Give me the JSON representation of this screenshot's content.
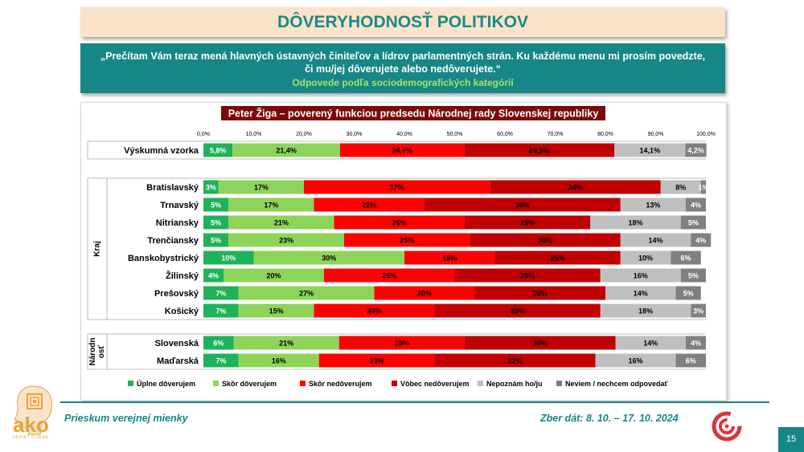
{
  "header": {
    "title": "DÔVERYHODNOSŤ POLITIKOV",
    "question": "„Prečítam Vám teraz mená hlavných ústavných činiteľov a lídrov parlamentných strán. Ku každému menu mi prosím povedzte, či mu/jej dôverujete alebo nedôverujete.“",
    "subtitle": "Odpovede podľa sociodemografických kategórií"
  },
  "chart_data": {
    "type": "bar",
    "orientation": "horizontal",
    "stacked": true,
    "title": "Peter Žiga – poverený funkciou predsedu Národnej rady Slovenskej republiky",
    "xlim": [
      0,
      100
    ],
    "tick_labels": [
      "0,0%",
      "10,0%",
      "20,0%",
      "30,0%",
      "40,0%",
      "50,0%",
      "60,0%",
      "70,0%",
      "80,0%",
      "90,0%",
      "100,0%"
    ],
    "legend_position": "bottom",
    "series": [
      {
        "name": "Úplne dôverujem",
        "color": "#1fb25a"
      },
      {
        "name": "Skôr dôverujem",
        "color": "#8fd45a"
      },
      {
        "name": "Skôr nedôverujem",
        "color": "#ff0000"
      },
      {
        "name": "Vôbec nedôverujem",
        "color": "#c00000"
      },
      {
        "name": "Nepoznám ho/ju",
        "color": "#bfbfbf"
      },
      {
        "name": "Neviem / nechcem odpovedať",
        "color": "#808080"
      }
    ],
    "groups": [
      {
        "label": "",
        "rows": [
          {
            "label": "Výskumná vzorka",
            "values": [
              5.8,
              21.4,
              24.7,
              29.9,
              14.1,
              4.2
            ],
            "labels": [
              "5,8%",
              "21,4%",
              "24,7%",
              "29,9%",
              "14,1%",
              "4,2%"
            ]
          }
        ]
      },
      {
        "label": "Kraj",
        "rows": [
          {
            "label": "Bratislavský",
            "values": [
              3,
              17,
              37,
              34,
              8,
              1
            ],
            "labels": [
              "3%",
              "17%",
              "37%",
              "34%",
              "8%",
              "1%"
            ]
          },
          {
            "label": "Trnavský",
            "values": [
              5,
              17,
              22,
              39,
              13,
              4
            ],
            "labels": [
              "5%",
              "17%",
              "22%",
              "39%",
              "13%",
              "4%"
            ]
          },
          {
            "label": "Nitriansky",
            "values": [
              5,
              21,
              26,
              25,
              18,
              5
            ],
            "labels": [
              "5%",
              "21%",
              "26%",
              "25%",
              "18%",
              "5%"
            ]
          },
          {
            "label": "Trenčiansky",
            "values": [
              5,
              23,
              25,
              30,
              14,
              4
            ],
            "labels": [
              "5%",
              "23%",
              "25%",
              "30%",
              "14%",
              "4%"
            ]
          },
          {
            "label": "Banskobystrický",
            "values": [
              10,
              30,
              18,
              25,
              10,
              6
            ],
            "labels": [
              "10%",
              "30%",
              "18%",
              "25%",
              "10%",
              "6%"
            ]
          },
          {
            "label": "Žilinský",
            "values": [
              4,
              20,
              26,
              29,
              16,
              5
            ],
            "labels": [
              "4%",
              "20%",
              "26%",
              "29%",
              "16%",
              "5%"
            ]
          },
          {
            "label": "Prešovský",
            "values": [
              7,
              27,
              20,
              26,
              14,
              5
            ],
            "labels": [
              "7%",
              "27%",
              "20%",
              "26%",
              "14%",
              "5%"
            ]
          },
          {
            "label": "Košický",
            "values": [
              7,
              15,
              24,
              33,
              18,
              3
            ],
            "labels": [
              "7%",
              "15%",
              "24%",
              "33%",
              "18%",
              "3%"
            ]
          }
        ]
      },
      {
        "label": "Národn osť",
        "rows": [
          {
            "label": "Slovenská",
            "values": [
              6,
              21,
              25,
              30,
              14,
              4
            ],
            "labels": [
              "6%",
              "21%",
              "25%",
              "30%",
              "14%",
              "4%"
            ]
          },
          {
            "label": "Maďarská",
            "values": [
              7,
              16,
              23,
              32,
              16,
              6
            ],
            "labels": [
              "7%",
              "16%",
              "23%",
              "32%",
              "16%",
              "6%"
            ]
          }
        ]
      }
    ]
  },
  "footer": {
    "survey_name": "Prieskum verejnej mienky",
    "collection_dates": "Zber dát: 8. 10. – 17. 10. 2024",
    "page_number": "15",
    "logo_text": "ako",
    "logo_subtext": "VEDIEŤ O SEBE"
  }
}
